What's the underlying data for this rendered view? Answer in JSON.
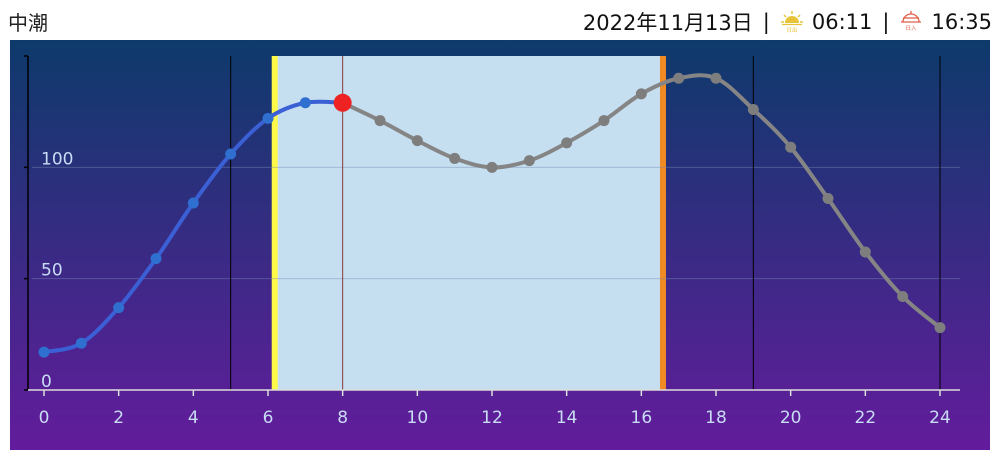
{
  "header": {
    "tide_name": "中潮",
    "date": "2022年11月13日",
    "sep": "|",
    "sunrise_time": "06:11",
    "sunset_time": "16:35",
    "sunrise_icon": "sunrise-icon",
    "sunset_icon": "sunset-icon",
    "sunrise_icon_text": "日出",
    "sunset_icon_text": "日入"
  },
  "colors": {
    "bg_top": "#0d3a6b",
    "bg_bottom": "#631c9c",
    "daylight": "#c5def0",
    "sunrise_line": "#fff94a",
    "sunset_line": "#f08a25",
    "past_line": "#3b5fd4",
    "future_line": "#858585",
    "current_dot": "#ee2222",
    "sunrise_icon": "#e8c33a",
    "sunset_icon": "#e0604a"
  },
  "chart_data": {
    "type": "line",
    "x": [
      0,
      1,
      2,
      3,
      4,
      5,
      6,
      7,
      8,
      9,
      10,
      11,
      12,
      13,
      14,
      15,
      16,
      17,
      18,
      19,
      20,
      21,
      22,
      23,
      24
    ],
    "values": [
      17,
      21,
      37,
      59,
      84,
      106,
      122,
      129,
      129,
      121,
      112,
      104,
      100,
      103,
      111,
      121,
      133,
      140,
      140,
      126,
      109,
      86,
      62,
      42,
      28
    ],
    "xlim": [
      0,
      24
    ],
    "ylim": [
      0,
      150
    ],
    "xticks": [
      "0",
      "2",
      "4",
      "6",
      "8",
      "10",
      "12",
      "14",
      "16",
      "18",
      "20",
      "22",
      "24"
    ],
    "yticks": [
      "0",
      "50",
      "100"
    ],
    "current_hour": 8,
    "sunrise_hour": 6.18,
    "sunset_hour": 16.58,
    "vertical_gridlines": [
      5,
      19,
      24
    ]
  }
}
